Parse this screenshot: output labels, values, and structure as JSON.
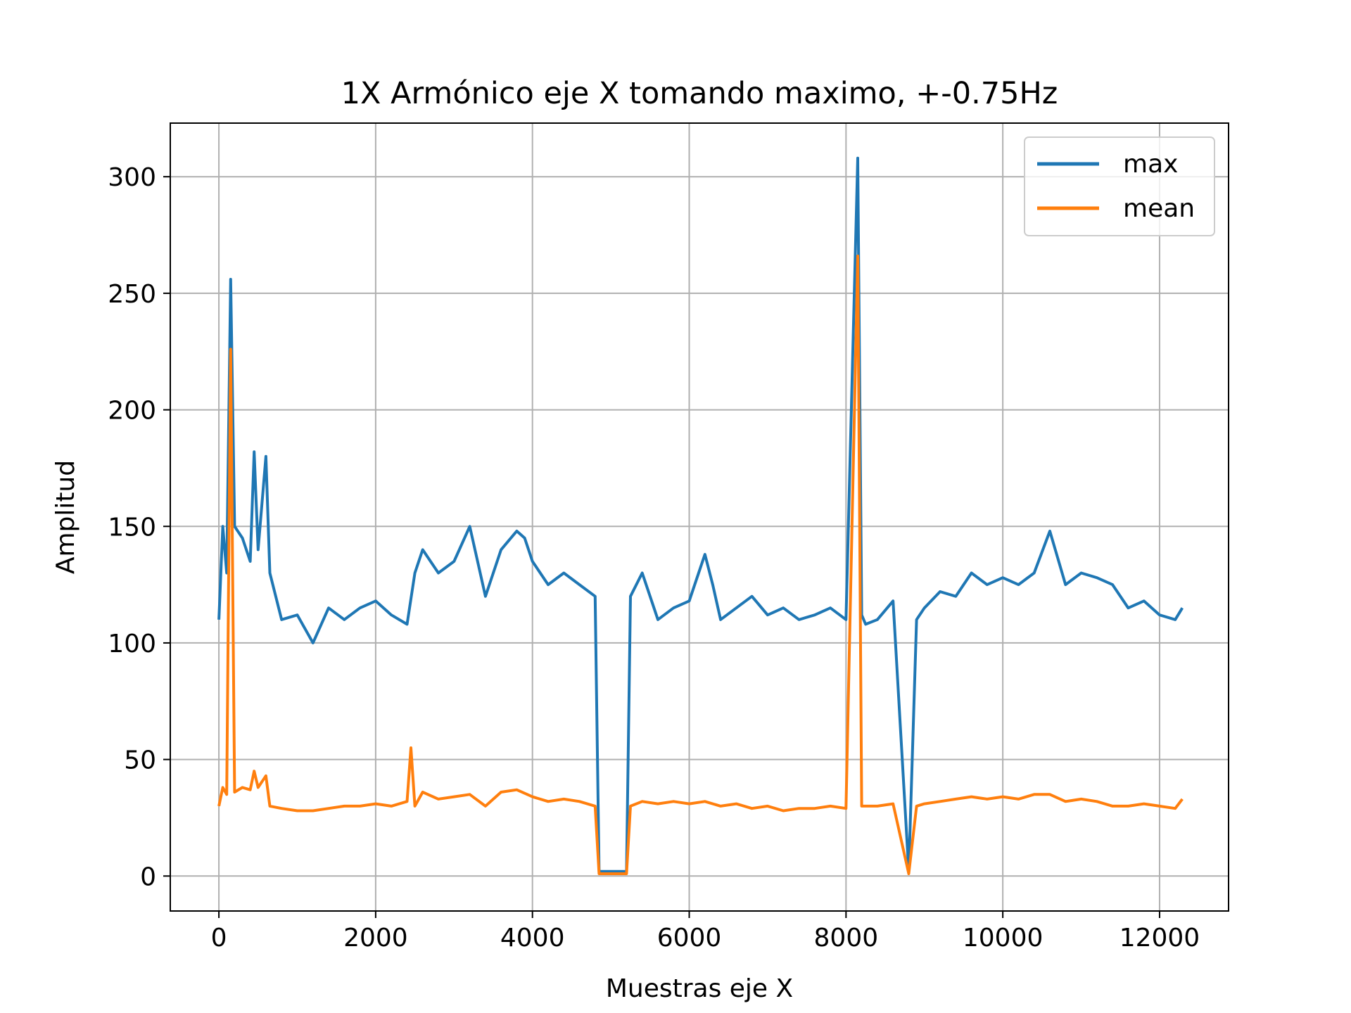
{
  "chart_data": {
    "type": "line",
    "title": "1X Armónico eje X tomando maximo, +-0.75Hz",
    "xlabel": "Muestras eje X",
    "ylabel": "Amplitud",
    "xlim": [
      -620,
      12880
    ],
    "ylim": [
      -15,
      323
    ],
    "xticks": [
      0,
      2000,
      4000,
      6000,
      8000,
      10000,
      12000
    ],
    "xtick_labels": [
      "0",
      "2000",
      "4000",
      "6000",
      "8000",
      "10000",
      "12000"
    ],
    "yticks": [
      0,
      50,
      100,
      150,
      200,
      250,
      300
    ],
    "ytick_labels": [
      "0",
      "50",
      "100",
      "150",
      "200",
      "250",
      "300"
    ],
    "grid": true,
    "legend_position": "top-right",
    "colors": {
      "max": "#1f77b4",
      "mean": "#ff7f0e",
      "grid": "#b0b0b0"
    },
    "series": [
      {
        "name": "max",
        "color": "#1f77b4",
        "x": [
          0,
          50,
          100,
          150,
          200,
          300,
          400,
          450,
          500,
          600,
          650,
          800,
          1000,
          1200,
          1400,
          1600,
          1800,
          2000,
          2200,
          2400,
          2500,
          2600,
          2800,
          3000,
          3200,
          3400,
          3600,
          3800,
          3900,
          4000,
          4200,
          4400,
          4600,
          4800,
          4850,
          5000,
          5200,
          5250,
          5400,
          5600,
          5800,
          6000,
          6200,
          6300,
          6400,
          6600,
          6800,
          7000,
          7200,
          7400,
          7600,
          7800,
          8000,
          8150,
          8200,
          8250,
          8400,
          8600,
          8800,
          8900,
          9000,
          9200,
          9400,
          9600,
          9800,
          10000,
          10200,
          10400,
          10600,
          10800,
          11000,
          11200,
          11400,
          11600,
          11800,
          12000,
          12200,
          12290
        ],
        "y": [
          110,
          150,
          130,
          256,
          150,
          145,
          135,
          182,
          140,
          180,
          130,
          110,
          112,
          100,
          115,
          110,
          115,
          118,
          112,
          108,
          130,
          140,
          130,
          135,
          150,
          120,
          140,
          148,
          145,
          135,
          125,
          130,
          125,
          120,
          2,
          2,
          2,
          120,
          130,
          110,
          115,
          118,
          138,
          125,
          110,
          115,
          120,
          112,
          115,
          110,
          112,
          115,
          110,
          308,
          112,
          108,
          110,
          118,
          2,
          110,
          115,
          122,
          120,
          130,
          125,
          128,
          125,
          130,
          148,
          125,
          130,
          128,
          125,
          115,
          118,
          112,
          110,
          115
        ]
      },
      {
        "name": "mean",
        "color": "#ff7f0e",
        "x": [
          0,
          50,
          100,
          150,
          200,
          300,
          400,
          450,
          500,
          600,
          650,
          800,
          1000,
          1200,
          1400,
          1600,
          1800,
          2000,
          2200,
          2400,
          2450,
          2500,
          2600,
          2800,
          3000,
          3200,
          3400,
          3600,
          3800,
          4000,
          4200,
          4400,
          4600,
          4800,
          4850,
          5000,
          5200,
          5250,
          5400,
          5600,
          5800,
          6000,
          6200,
          6400,
          6600,
          6800,
          7000,
          7200,
          7400,
          7600,
          7800,
          8000,
          8150,
          8200,
          8250,
          8400,
          8600,
          8800,
          8900,
          9000,
          9200,
          9400,
          9600,
          9800,
          10000,
          10200,
          10400,
          10600,
          10800,
          11000,
          11200,
          11400,
          11600,
          11800,
          12000,
          12200,
          12290
        ],
        "y": [
          30,
          38,
          35,
          226,
          36,
          38,
          37,
          45,
          38,
          43,
          30,
          29,
          28,
          28,
          29,
          30,
          30,
          31,
          30,
          32,
          55,
          30,
          36,
          33,
          34,
          35,
          30,
          36,
          37,
          34,
          32,
          33,
          32,
          30,
          1,
          1,
          1,
          30,
          32,
          31,
          32,
          31,
          32,
          30,
          31,
          29,
          30,
          28,
          29,
          29,
          30,
          29,
          266,
          30,
          30,
          30,
          31,
          1,
          30,
          31,
          32,
          33,
          34,
          33,
          34,
          33,
          35,
          35,
          32,
          33,
          32,
          30,
          30,
          31,
          30,
          29,
          33
        ]
      }
    ]
  }
}
